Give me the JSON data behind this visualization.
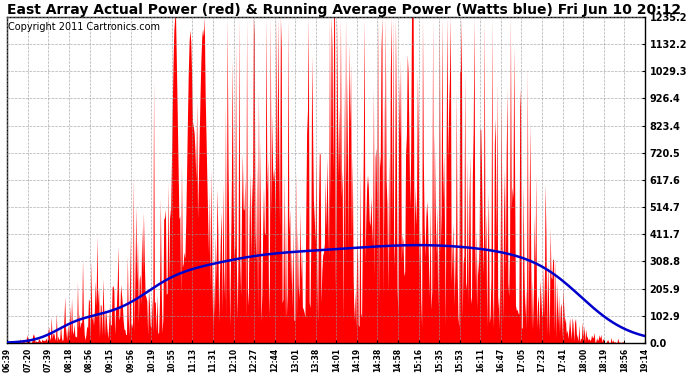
{
  "title": "East Array Actual Power (red) & Running Average Power (Watts blue) Fri Jun 10 20:12",
  "copyright": "Copyright 2011 Cartronics.com",
  "ymin": 0.0,
  "ymax": 1235.2,
  "yticks": [
    0.0,
    102.9,
    205.9,
    308.8,
    411.7,
    514.7,
    617.6,
    720.5,
    823.4,
    926.4,
    1029.3,
    1132.2,
    1235.2
  ],
  "xtick_labels": [
    "06:39",
    "07:20",
    "07:39",
    "08:18",
    "08:56",
    "09:15",
    "09:56",
    "10:19",
    "10:55",
    "11:13",
    "11:31",
    "12:10",
    "12:27",
    "12:44",
    "13:01",
    "13:38",
    "14:01",
    "14:19",
    "14:38",
    "14:58",
    "15:16",
    "15:35",
    "15:53",
    "16:11",
    "16:47",
    "17:05",
    "17:23",
    "17:41",
    "18:00",
    "18:19",
    "18:56",
    "19:14"
  ],
  "background_color": "#ffffff",
  "plot_bg_color": "#ffffff",
  "grid_color": "#999999",
  "actual_color": "#ff0000",
  "avg_color": "#0000cc",
  "title_fontsize": 10,
  "copyright_fontsize": 7
}
